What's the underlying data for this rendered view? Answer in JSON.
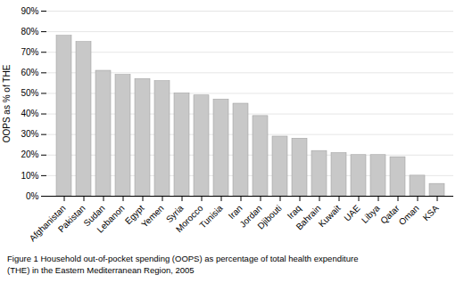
{
  "chart_data": {
    "type": "bar",
    "caption": [
      "Figure 1 Household out-of-pocket spending (OOPS) as percentage of total health expenditure",
      "(THE) in the Eastern Mediterranean Region, 2005"
    ],
    "ylabel": "OOPS as % of THE",
    "categories": [
      "Afghanistan",
      "Pakistan",
      "Sudan",
      "Lebanon",
      "Egypt",
      "Yemen",
      "Syria",
      "Morocco",
      "Tunisia",
      "Iran",
      "Jordan",
      "Djibouti",
      "Iraq",
      "Bahrain",
      "Kuwait",
      "UAE",
      "Libya",
      "Qatar",
      "Oman",
      "KSA"
    ],
    "values": [
      78,
      75,
      61,
      59,
      57,
      56,
      50,
      49,
      47,
      45,
      39,
      29,
      28,
      22,
      21,
      20,
      20,
      19,
      10,
      6
    ],
    "color": "#c8c8c8",
    "ylim": [
      0,
      90
    ],
    "yticks": [
      {
        "value": 0,
        "label": "0%"
      },
      {
        "value": 10,
        "label": "10%"
      },
      {
        "value": 20,
        "label": "20%"
      },
      {
        "value": 30,
        "label": "30%"
      },
      {
        "value": 40,
        "label": "40%"
      },
      {
        "value": 50,
        "label": "50%"
      },
      {
        "value": 60,
        "label": "60%"
      },
      {
        "value": 70,
        "label": "70%"
      },
      {
        "value": 80,
        "label": "80%"
      },
      {
        "value": 90,
        "label": "90%"
      }
    ],
    "grid": true
  }
}
